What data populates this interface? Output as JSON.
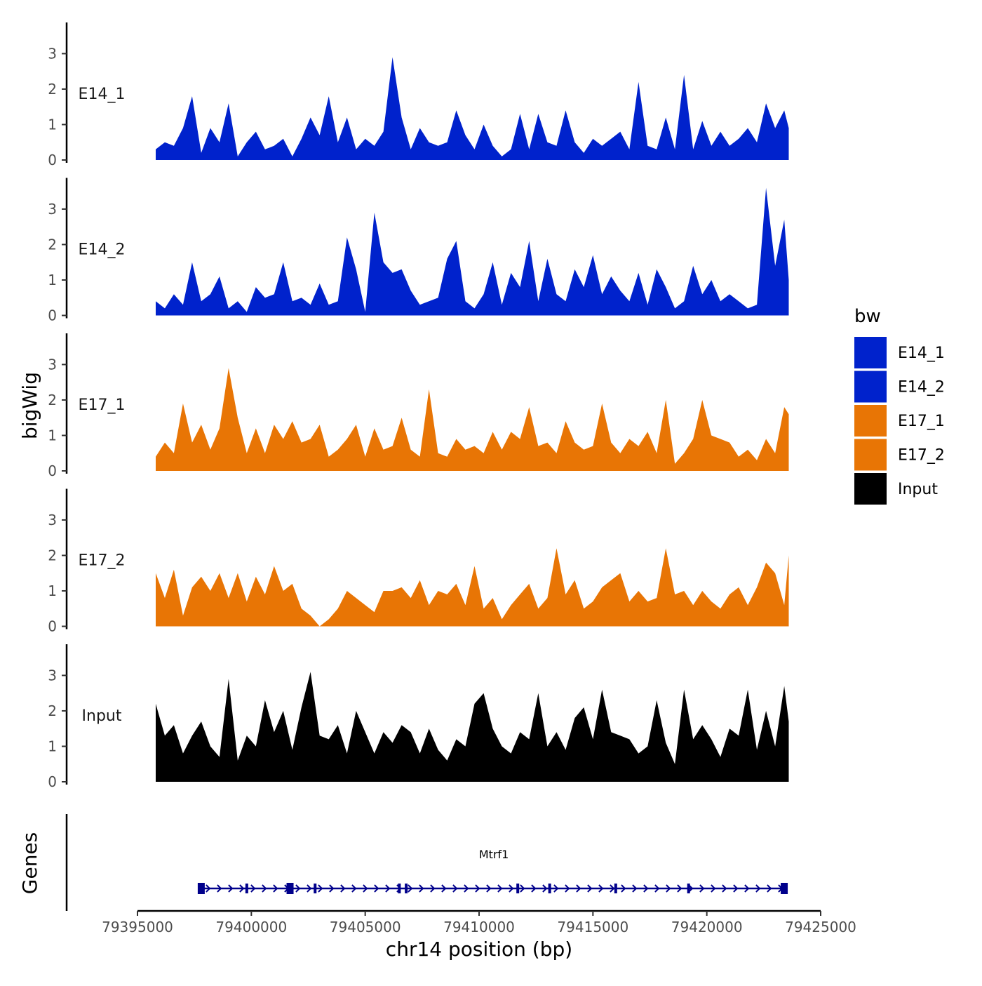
{
  "chart_data": {
    "type": "area",
    "title": "",
    "xlabel": "chr14 position (bp)",
    "ylabel": "bigWig",
    "gene_track_label": "Genes",
    "xlim": [
      79395000,
      79425000
    ],
    "ylim": [
      0,
      3.8
    ],
    "x_ticks": [
      79395000,
      79400000,
      79405000,
      79410000,
      79415000,
      79420000,
      79425000
    ],
    "x_tick_labels": [
      "79395000",
      "79400000",
      "79405000",
      "79410000",
      "79415000",
      "79420000",
      "79425000"
    ],
    "y_ticks": [
      0,
      1,
      2,
      3
    ],
    "y_tick_labels": [
      "0",
      "1",
      "2",
      "3"
    ],
    "legend": {
      "title": "bw",
      "position": "right",
      "entries": [
        {
          "label": "E14_1",
          "color": "#0022cc"
        },
        {
          "label": "E14_2",
          "color": "#0022cc"
        },
        {
          "label": "E17_1",
          "color": "#e87505"
        },
        {
          "label": "E17_2",
          "color": "#e87505"
        },
        {
          "label": "Input",
          "color": "#000000"
        }
      ]
    },
    "track_x": [
      79395800,
      79396200,
      79396600,
      79397000,
      79397400,
      79397800,
      79398200,
      79398600,
      79399000,
      79399400,
      79399800,
      79400200,
      79400600,
      79401000,
      79401400,
      79401800,
      79402200,
      79402600,
      79403000,
      79403400,
      79403800,
      79404200,
      79404600,
      79405000,
      79405400,
      79405800,
      79406200,
      79406600,
      79407000,
      79407400,
      79407800,
      79408200,
      79408600,
      79409000,
      79409400,
      79409800,
      79410200,
      79410600,
      79411000,
      79411400,
      79411800,
      79412200,
      79412600,
      79413000,
      79413400,
      79413800,
      79414200,
      79414600,
      79415000,
      79415400,
      79415800,
      79416200,
      79416600,
      79417000,
      79417400,
      79417800,
      79418200,
      79418600,
      79419000,
      79419400,
      79419800,
      79420200,
      79420600,
      79421000,
      79421400,
      79421800,
      79422200,
      79422600,
      79423000,
      79423400,
      79423600
    ],
    "series": [
      {
        "name": "E14_1",
        "color": "#0022cc",
        "values": [
          0.3,
          0.5,
          0.4,
          0.9,
          1.8,
          0.2,
          0.9,
          0.5,
          1.6,
          0.1,
          0.5,
          0.8,
          0.3,
          0.4,
          0.6,
          0.1,
          0.6,
          1.2,
          0.7,
          1.8,
          0.5,
          1.2,
          0.3,
          0.6,
          0.4,
          0.8,
          2.9,
          1.2,
          0.3,
          0.9,
          0.5,
          0.4,
          0.5,
          1.4,
          0.7,
          0.3,
          1.0,
          0.4,
          0.1,
          0.3,
          1.3,
          0.3,
          1.3,
          0.5,
          0.4,
          1.4,
          0.5,
          0.2,
          0.6,
          0.4,
          0.6,
          0.8,
          0.3,
          2.2,
          0.4,
          0.3,
          1.2,
          0.3,
          2.4,
          0.3,
          1.1,
          0.4,
          0.8,
          0.4,
          0.6,
          0.9,
          0.5,
          1.6,
          0.9,
          1.4,
          0.9
        ]
      },
      {
        "name": "E14_2",
        "color": "#0022cc",
        "values": [
          0.4,
          0.2,
          0.6,
          0.3,
          1.5,
          0.4,
          0.6,
          1.1,
          0.2,
          0.4,
          0.1,
          0.8,
          0.5,
          0.6,
          1.5,
          0.4,
          0.5,
          0.3,
          0.9,
          0.3,
          0.4,
          2.2,
          1.3,
          0.1,
          2.9,
          1.5,
          1.2,
          1.3,
          0.7,
          0.3,
          0.4,
          0.5,
          1.6,
          2.1,
          0.4,
          0.2,
          0.6,
          1.5,
          0.3,
          1.2,
          0.8,
          2.1,
          0.4,
          1.6,
          0.6,
          0.4,
          1.3,
          0.8,
          1.7,
          0.6,
          1.1,
          0.7,
          0.4,
          1.2,
          0.3,
          1.3,
          0.8,
          0.2,
          0.4,
          1.4,
          0.6,
          1.0,
          0.4,
          0.6,
          0.4,
          0.2,
          0.3,
          3.6,
          1.4,
          2.7,
          1.0
        ]
      },
      {
        "name": "E17_1",
        "color": "#e87505",
        "values": [
          0.4,
          0.8,
          0.5,
          1.9,
          0.8,
          1.3,
          0.6,
          1.2,
          2.9,
          1.5,
          0.5,
          1.2,
          0.5,
          1.3,
          0.9,
          1.4,
          0.8,
          0.9,
          1.3,
          0.4,
          0.6,
          0.9,
          1.3,
          0.4,
          1.2,
          0.6,
          0.7,
          1.5,
          0.6,
          0.4,
          2.3,
          0.5,
          0.4,
          0.9,
          0.6,
          0.7,
          0.5,
          1.1,
          0.6,
          1.1,
          0.9,
          1.8,
          0.7,
          0.8,
          0.5,
          1.4,
          0.8,
          0.6,
          0.7,
          1.9,
          0.8,
          0.5,
          0.9,
          0.7,
          1.1,
          0.5,
          2.0,
          0.2,
          0.5,
          0.9,
          2.0,
          1.0,
          0.9,
          0.8,
          0.4,
          0.6,
          0.3,
          0.9,
          0.5,
          1.8,
          1.6
        ]
      },
      {
        "name": "E17_2",
        "color": "#e87505",
        "values": [
          1.5,
          0.8,
          1.6,
          0.3,
          1.1,
          1.4,
          1.0,
          1.5,
          0.8,
          1.5,
          0.7,
          1.4,
          0.9,
          1.7,
          1.0,
          1.2,
          0.5,
          0.3,
          0.0,
          0.2,
          0.5,
          1.0,
          0.8,
          0.6,
          0.4,
          1.0,
          1.0,
          1.1,
          0.8,
          1.3,
          0.6,
          1.0,
          0.9,
          1.2,
          0.6,
          1.7,
          0.5,
          0.8,
          0.2,
          0.6,
          0.9,
          1.2,
          0.5,
          0.8,
          2.2,
          0.9,
          1.3,
          0.5,
          0.7,
          1.1,
          1.3,
          1.5,
          0.7,
          1.0,
          0.7,
          0.8,
          2.2,
          0.9,
          1.0,
          0.6,
          1.0,
          0.7,
          0.5,
          0.9,
          1.1,
          0.6,
          1.1,
          1.8,
          1.5,
          0.6,
          2.0
        ]
      },
      {
        "name": "Input",
        "color": "#000000",
        "values": [
          2.2,
          1.3,
          1.6,
          0.8,
          1.3,
          1.7,
          1.0,
          0.7,
          2.9,
          0.6,
          1.3,
          1.0,
          2.3,
          1.4,
          2.0,
          0.9,
          2.1,
          3.1,
          1.3,
          1.2,
          1.6,
          0.8,
          2.0,
          1.4,
          0.8,
          1.4,
          1.1,
          1.6,
          1.4,
          0.8,
          1.5,
          0.9,
          0.6,
          1.2,
          1.0,
          2.2,
          2.5,
          1.5,
          1.0,
          0.8,
          1.4,
          1.2,
          2.5,
          1.0,
          1.4,
          0.9,
          1.8,
          2.1,
          1.2,
          2.6,
          1.4,
          1.3,
          1.2,
          0.8,
          1.0,
          2.3,
          1.1,
          0.5,
          2.6,
          1.2,
          1.6,
          1.2,
          0.7,
          1.5,
          1.3,
          2.6,
          0.9,
          2.0,
          1.0,
          2.7,
          1.7
        ]
      }
    ],
    "gene": {
      "name": "Mtrf1",
      "start": 79397800,
      "end": 79423500,
      "strand": "+",
      "exons": [
        79397800,
        79399800,
        79401700,
        79402800,
        79406500,
        79406800,
        79411700,
        79413100,
        79416000,
        79419200,
        79423400
      ]
    }
  }
}
